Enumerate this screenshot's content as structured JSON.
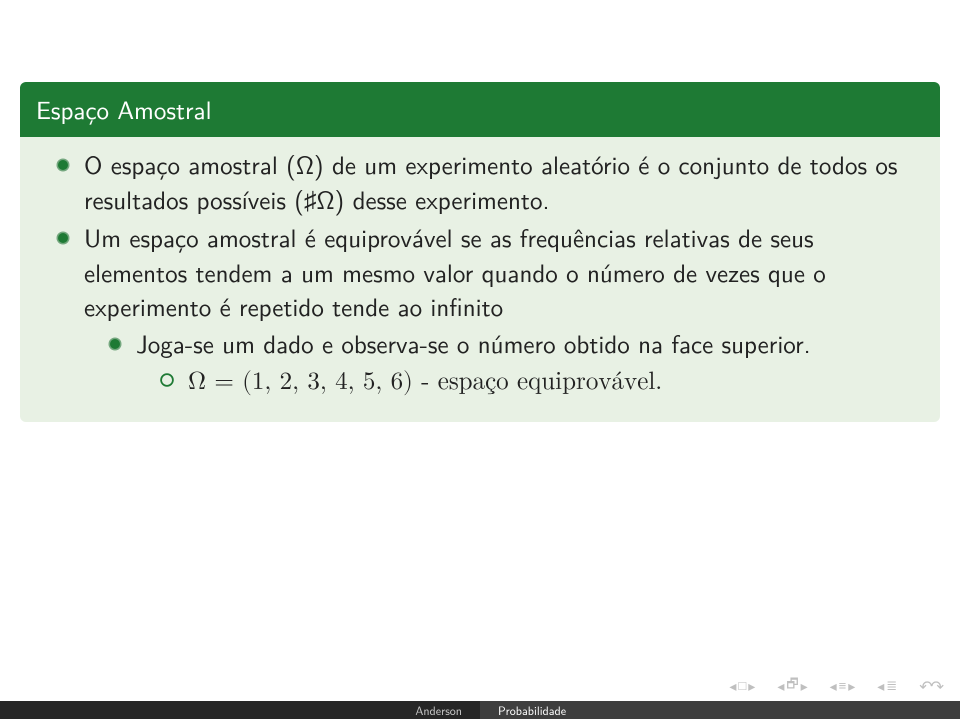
{
  "colors": {
    "header_bg": "#1e7a34",
    "body_bg": "#e8f1e4",
    "text": "#222222",
    "bullet_outer": "#74a77e",
    "bullet_inner": "#1e7a34",
    "bullet_nested": "#1e7a34",
    "footer_left_bg": "#262626",
    "footer_left_text": "#c9c9c9",
    "footer_right_bg": "#3e3e3e",
    "footer_right_text": "#ffffff",
    "nav_icon": "#bfbfbf"
  },
  "block": {
    "title": "Espaço Amostral",
    "items": [
      {
        "text": "O espaço amostral (Ω) de um experimento aleatório é o conjunto de todos os resultados possíveis (♯Ω) desse experimento."
      },
      {
        "text": "Um espaço amostral é equiprovável se as frequências relativas de seus elementos tendem a um mesmo valor quando o número de vezes que o experimento é repetido tende ao infinito",
        "children": [
          {
            "text": "Joga-se um dado e observa-se o número obtido na face superior.",
            "children": [
              {
                "text": "Ω = (1, 2, 3, 4, 5, 6) - espaço equiprovável."
              }
            ]
          }
        ]
      }
    ]
  },
  "footer": {
    "left": "Anderson",
    "right": "Probabilidade"
  }
}
